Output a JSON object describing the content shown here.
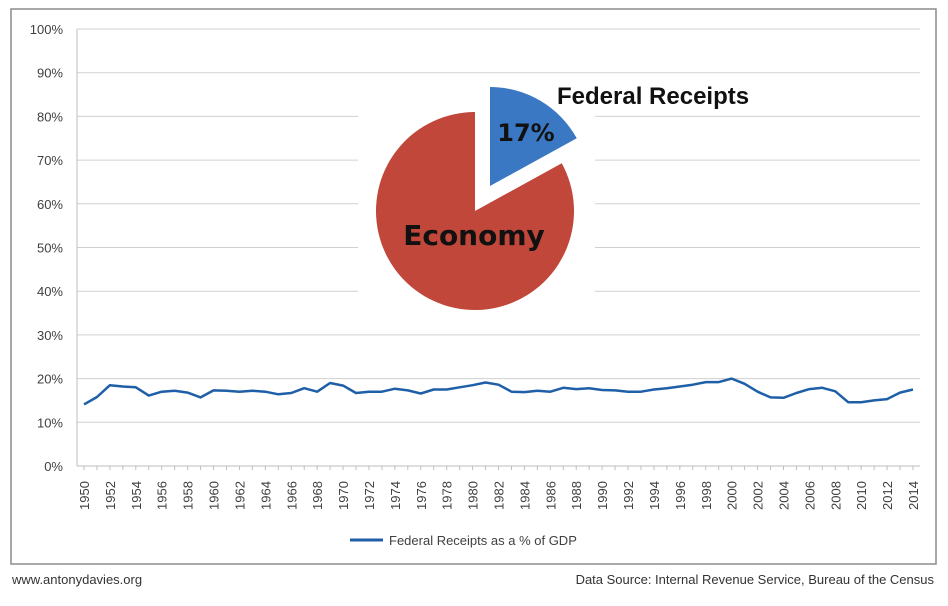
{
  "chart_data": [
    {
      "type": "line",
      "title": "",
      "xlabel": "",
      "ylabel": "",
      "ylim": [
        0,
        100
      ],
      "y_ticks": [
        "0%",
        "10%",
        "20%",
        "30%",
        "40%",
        "50%",
        "60%",
        "70%",
        "80%",
        "90%",
        "100%"
      ],
      "grid": true,
      "legend_placement": "bottom",
      "x": [
        1950,
        1951,
        1952,
        1953,
        1954,
        1955,
        1956,
        1957,
        1958,
        1959,
        1960,
        1961,
        1962,
        1963,
        1964,
        1965,
        1966,
        1967,
        1968,
        1969,
        1970,
        1971,
        1972,
        1973,
        1974,
        1975,
        1976,
        1977,
        1978,
        1979,
        1980,
        1981,
        1982,
        1983,
        1984,
        1985,
        1986,
        1987,
        1988,
        1989,
        1990,
        1991,
        1992,
        1993,
        1994,
        1995,
        1996,
        1997,
        1998,
        1999,
        2000,
        2001,
        2002,
        2003,
        2004,
        2005,
        2006,
        2007,
        2008,
        2009,
        2010,
        2011,
        2012,
        2013,
        2014
      ],
      "x_tick_labels": [
        "1950",
        "1952",
        "1954",
        "1956",
        "1958",
        "1960",
        "1962",
        "1964",
        "1966",
        "1968",
        "1970",
        "1972",
        "1974",
        "1976",
        "1978",
        "1980",
        "1982",
        "1984",
        "1986",
        "1988",
        "1990",
        "1992",
        "1994",
        "1996",
        "1998",
        "2000",
        "2002",
        "2004",
        "2006",
        "2008",
        "2010",
        "2012",
        "2014"
      ],
      "series": [
        {
          "name": "Federal Receipts as a % of GDP",
          "color": "#1f5fa8",
          "values": [
            14.1,
            15.8,
            18.5,
            18.2,
            18.0,
            16.1,
            17.0,
            17.2,
            16.8,
            15.7,
            17.3,
            17.2,
            17.0,
            17.2,
            17.0,
            16.4,
            16.7,
            17.8,
            17.0,
            19.0,
            18.4,
            16.7,
            17.0,
            17.0,
            17.7,
            17.3,
            16.6,
            17.5,
            17.5,
            18.0,
            18.5,
            19.1,
            18.6,
            17.0,
            16.9,
            17.2,
            17.0,
            17.9,
            17.6,
            17.8,
            17.4,
            17.3,
            17.0,
            17.0,
            17.5,
            17.8,
            18.2,
            18.6,
            19.2,
            19.2,
            20.0,
            18.8,
            17.0,
            15.7,
            15.6,
            16.7,
            17.6,
            17.9,
            17.1,
            14.6,
            14.6,
            15.0,
            15.3,
            16.8,
            17.5
          ]
        }
      ]
    },
    {
      "type": "pie",
      "slices": [
        {
          "label": "Federal Receipts",
          "value": 17,
          "value_label": "17%",
          "color": "#3b78c3",
          "exploded": true
        },
        {
          "label": "Economy",
          "value": 83,
          "color": "#c0473a"
        }
      ]
    }
  ],
  "footer": {
    "website": "www.antonydavies.org",
    "source": "Data Source: Internal Revenue Service, Bureau of the Census"
  }
}
